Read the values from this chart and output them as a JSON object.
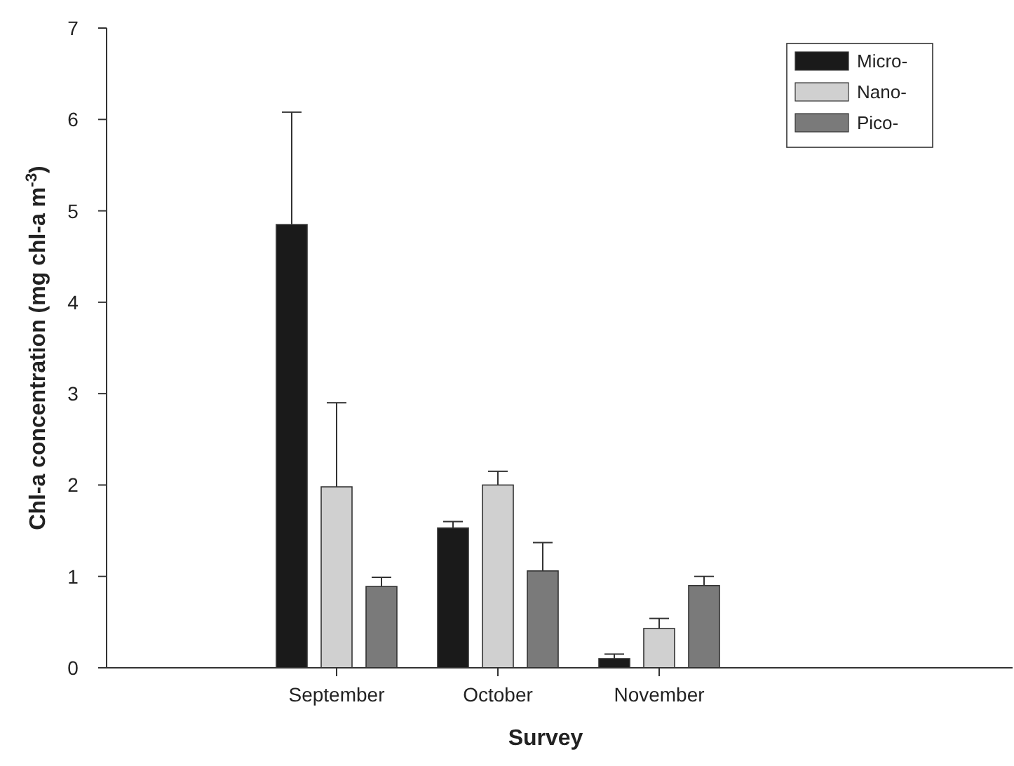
{
  "chart_data": {
    "type": "bar",
    "xlabel": "Survey",
    "ylabel": "Chl-a concentration (mg chl-a m$^{-3}$)",
    "categories": [
      "September",
      "October",
      "November"
    ],
    "series": [
      {
        "name": "Micro-",
        "color": "#1a1a1a",
        "values": [
          4.85,
          1.53,
          0.1
        ],
        "errors": [
          [
            4.85,
            6.08
          ],
          [
            1.53,
            1.6
          ],
          [
            0.1,
            0.15
          ]
        ]
      },
      {
        "name": "Nano-",
        "color": "#d0d0d0",
        "values": [
          1.98,
          2.0,
          0.43
        ],
        "errors": [
          [
            1.98,
            2.9
          ],
          [
            2.0,
            2.15
          ],
          [
            0.43,
            0.54
          ]
        ]
      },
      {
        "name": "Pico-",
        "color": "#7a7a7a",
        "values": [
          0.89,
          1.06,
          0.9
        ],
        "errors": [
          [
            0.89,
            0.99
          ],
          [
            1.06,
            1.37
          ],
          [
            0.9,
            1.0
          ]
        ]
      }
    ],
    "ylim": [
      0,
      7
    ],
    "yticks": [
      0,
      1,
      2,
      3,
      4,
      5,
      6,
      7
    ],
    "legend": "top right"
  }
}
